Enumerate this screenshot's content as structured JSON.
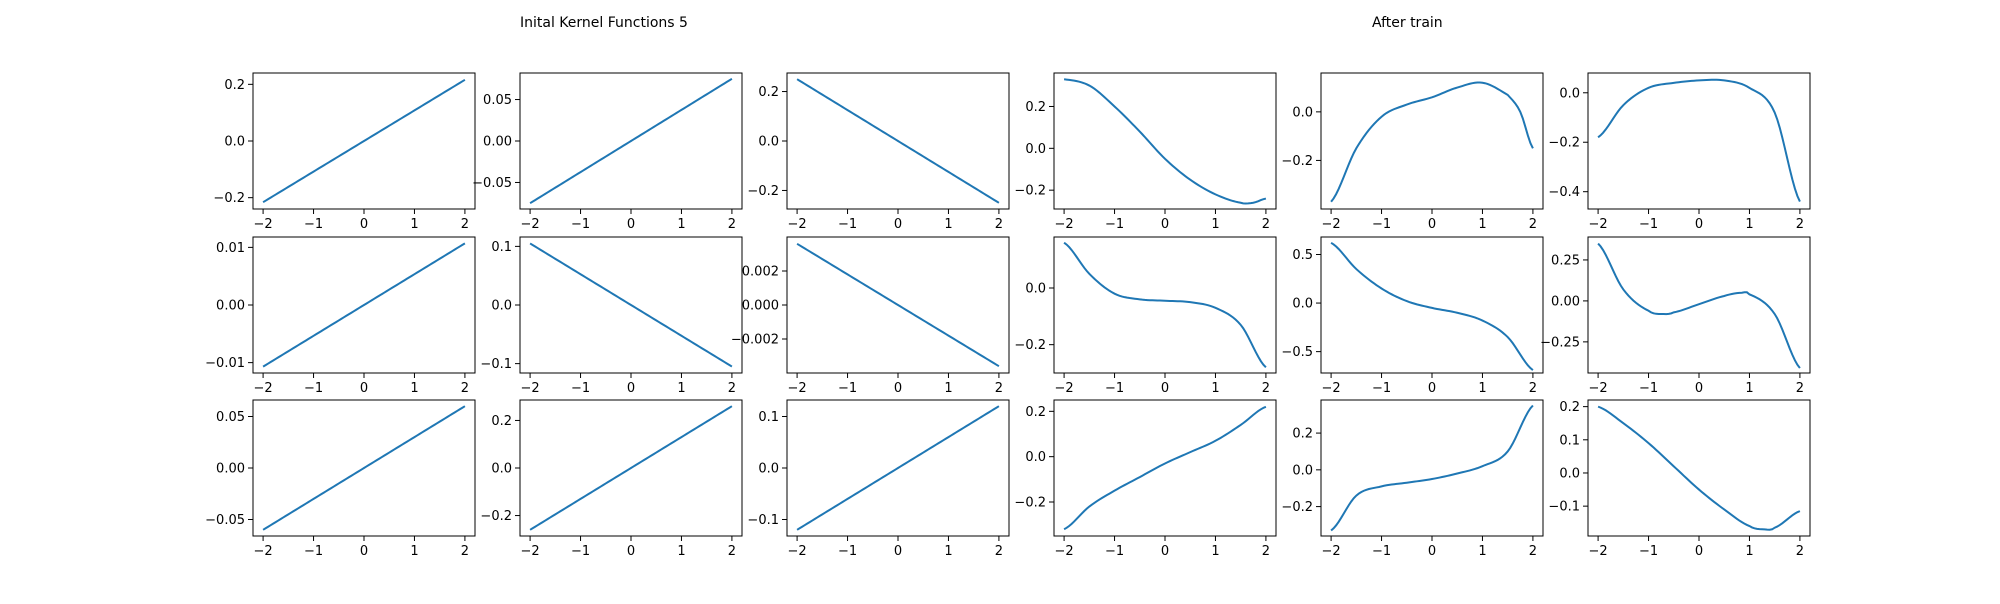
{
  "figure": {
    "left_title": "Inital Kernel Functions 5",
    "right_title": "After train"
  },
  "colors": {
    "line": "#1f77b4",
    "axes": "#000000"
  },
  "chart_data": [
    {
      "type": "line",
      "panel": "r1c1",
      "func": "linear",
      "params": [
        0.0,
        0.108
      ],
      "xlim": [
        -2,
        2
      ],
      "ylim": [
        -0.24,
        0.24
      ],
      "yticks": [
        -0.2,
        0.0,
        0.2
      ],
      "ytick_labels": [
        "−0.2",
        "0.0",
        "0.2"
      ]
    },
    {
      "type": "line",
      "panel": "r1c2",
      "func": "linear",
      "params": [
        0.0,
        0.0375
      ],
      "xlim": [
        -2,
        2
      ],
      "ylim": [
        -0.082,
        0.082
      ],
      "yticks": [
        -0.05,
        0.0,
        0.05
      ],
      "ytick_labels": [
        "−0.05",
        "0.00",
        "0.05"
      ]
    },
    {
      "type": "line",
      "panel": "r1c3",
      "func": "linear",
      "params": [
        0.0,
        -0.125
      ],
      "xlim": [
        -2,
        2
      ],
      "ylim": [
        -0.275,
        0.275
      ],
      "yticks": [
        -0.2,
        0.0,
        0.2
      ],
      "ytick_labels": [
        "−0.2",
        "0.0",
        "0.2"
      ]
    },
    {
      "type": "line",
      "panel": "r1c4",
      "func": "points",
      "x": [
        -2,
        -1.5,
        -1,
        -0.5,
        0,
        0.5,
        1,
        1.5,
        1.75,
        2
      ],
      "y": [
        0.33,
        0.3,
        0.2,
        0.08,
        -0.05,
        -0.15,
        -0.22,
        -0.26,
        -0.26,
        -0.24
      ],
      "xlim": [
        -2,
        2
      ],
      "ylim": [
        -0.29,
        0.36
      ],
      "yticks": [
        -0.2,
        0.0,
        0.2
      ],
      "ytick_labels": [
        "−0.2",
        "0.0",
        "0.2"
      ]
    },
    {
      "type": "line",
      "panel": "r1c5",
      "func": "points",
      "x": [
        -2,
        -1.5,
        -1,
        -0.5,
        0,
        0.5,
        1,
        1.5,
        1.75,
        2
      ],
      "y": [
        -0.37,
        -0.15,
        -0.02,
        0.03,
        0.06,
        0.1,
        0.12,
        0.07,
        0.0,
        -0.15
      ],
      "xlim": [
        -2,
        2
      ],
      "ylim": [
        -0.4,
        0.16
      ],
      "yticks": [
        -0.2,
        0.0
      ],
      "ytick_labels": [
        "−0.2",
        "0.0"
      ]
    },
    {
      "type": "line",
      "panel": "r1c6",
      "func": "points",
      "x": [
        -2,
        -1.5,
        -1,
        -0.5,
        0,
        0.5,
        1,
        1.5,
        2
      ],
      "y": [
        -0.18,
        -0.05,
        0.02,
        0.04,
        0.05,
        0.05,
        0.02,
        -0.08,
        -0.44
      ],
      "xlim": [
        -2,
        2
      ],
      "ylim": [
        -0.47,
        0.08
      ],
      "yticks": [
        -0.4,
        -0.2,
        0.0
      ],
      "ytick_labels": [
        "−0.4",
        "−0.2",
        "0.0"
      ]
    },
    {
      "type": "line",
      "panel": "r2c1",
      "func": "linear",
      "params": [
        0.0,
        0.00535
      ],
      "xlim": [
        -2,
        2
      ],
      "ylim": [
        -0.0118,
        0.0118
      ],
      "yticks": [
        -0.01,
        0.0,
        0.01
      ],
      "ytick_labels": [
        "−0.01",
        "0.00",
        "0.01"
      ]
    },
    {
      "type": "line",
      "panel": "r2c2",
      "func": "linear",
      "params": [
        0.0,
        -0.0525
      ],
      "xlim": [
        -2,
        2
      ],
      "ylim": [
        -0.116,
        0.116
      ],
      "yticks": [
        -0.1,
        0.0,
        0.1
      ],
      "ytick_labels": [
        "−0.1",
        "0.0",
        "0.1"
      ]
    },
    {
      "type": "line",
      "panel": "r2c3",
      "func": "linear",
      "params": [
        0.0,
        -0.0018
      ],
      "xlim": [
        -2,
        2
      ],
      "ylim": [
        -0.004,
        0.004
      ],
      "yticks": [
        -0.002,
        0.0,
        0.002
      ],
      "ytick_labels": [
        "−0.002",
        "0.000",
        "0.002"
      ]
    },
    {
      "type": "line",
      "panel": "r2c4",
      "func": "points",
      "x": [
        -2,
        -1.5,
        -1,
        -0.5,
        0,
        0.5,
        1,
        1.5,
        2
      ],
      "y": [
        0.16,
        0.05,
        -0.02,
        -0.04,
        -0.045,
        -0.05,
        -0.07,
        -0.13,
        -0.28
      ],
      "xlim": [
        -2,
        2
      ],
      "ylim": [
        -0.3,
        0.18
      ],
      "yticks": [
        -0.2,
        0.0
      ],
      "ytick_labels": [
        "−0.2",
        "0.0"
      ]
    },
    {
      "type": "line",
      "panel": "r2c5",
      "func": "points",
      "x": [
        -2,
        -1.5,
        -1,
        -0.5,
        0,
        0.5,
        1,
        1.5,
        2
      ],
      "y": [
        0.62,
        0.35,
        0.15,
        0.02,
        -0.05,
        -0.1,
        -0.18,
        -0.35,
        -0.69
      ],
      "xlim": [
        -2,
        2
      ],
      "ylim": [
        -0.72,
        0.68
      ],
      "yticks": [
        -0.5,
        0.0,
        0.5
      ],
      "ytick_labels": [
        "−0.5",
        "0.0",
        "0.5"
      ]
    },
    {
      "type": "line",
      "panel": "r2c6",
      "func": "points",
      "x": [
        -2,
        -1.5,
        -1,
        -0.7,
        -0.5,
        0,
        0.5,
        0.85,
        1,
        1.5,
        2
      ],
      "y": [
        0.35,
        0.07,
        -0.06,
        -0.08,
        -0.07,
        -0.02,
        0.03,
        0.05,
        0.04,
        -0.08,
        -0.41
      ],
      "xlim": [
        -2,
        2
      ],
      "ylim": [
        -0.44,
        0.39
      ],
      "yticks": [
        -0.25,
        0.0,
        0.25
      ],
      "ytick_labels": [
        "−0.25",
        "0.00",
        "0.25"
      ]
    },
    {
      "type": "line",
      "panel": "r3c1",
      "func": "linear",
      "params": [
        0.0,
        0.03
      ],
      "xlim": [
        -2,
        2
      ],
      "ylim": [
        -0.066,
        0.066
      ],
      "yticks": [
        -0.05,
        0.0,
        0.05
      ],
      "ytick_labels": [
        "−0.05",
        "0.00",
        "0.05"
      ]
    },
    {
      "type": "line",
      "panel": "r3c2",
      "func": "linear",
      "params": [
        0.0,
        0.13
      ],
      "xlim": [
        -2,
        2
      ],
      "ylim": [
        -0.286,
        0.286
      ],
      "yticks": [
        -0.2,
        0.0,
        0.2
      ],
      "ytick_labels": [
        "−0.2",
        "0.0",
        "0.2"
      ]
    },
    {
      "type": "line",
      "panel": "r3c3",
      "func": "linear",
      "params": [
        0.0,
        0.06
      ],
      "xlim": [
        -2,
        2
      ],
      "ylim": [
        -0.132,
        0.132
      ],
      "yticks": [
        -0.1,
        0.0,
        0.1
      ],
      "ytick_labels": [
        "−0.1",
        "0.0",
        "0.1"
      ]
    },
    {
      "type": "line",
      "panel": "r3c4",
      "func": "points",
      "x": [
        -2,
        -1.5,
        -1,
        -0.5,
        0,
        0.5,
        1,
        1.5,
        2
      ],
      "y": [
        -0.32,
        -0.22,
        -0.15,
        -0.09,
        -0.03,
        0.02,
        0.07,
        0.14,
        0.22
      ],
      "xlim": [
        -2,
        2
      ],
      "ylim": [
        -0.35,
        0.25
      ],
      "yticks": [
        -0.2,
        0.0,
        0.2
      ],
      "ytick_labels": [
        "−0.2",
        "0.0",
        "0.2"
      ]
    },
    {
      "type": "line",
      "panel": "r3c5",
      "func": "points",
      "x": [
        -2,
        -1.5,
        -1,
        -0.5,
        0,
        0.5,
        1,
        1.5,
        2
      ],
      "y": [
        -0.33,
        -0.14,
        -0.09,
        -0.07,
        -0.05,
        -0.02,
        0.02,
        0.1,
        0.35
      ],
      "xlim": [
        -2,
        2
      ],
      "ylim": [
        -0.36,
        0.38
      ],
      "yticks": [
        -0.2,
        0.0,
        0.2
      ],
      "ytick_labels": [
        "−0.2",
        "0.0",
        "0.2"
      ]
    },
    {
      "type": "line",
      "panel": "r3c6",
      "func": "points",
      "x": [
        -2,
        -1.5,
        -1,
        -0.5,
        0,
        0.5,
        1,
        1.3,
        1.5,
        2
      ],
      "y": [
        0.2,
        0.15,
        0.09,
        0.02,
        -0.05,
        -0.11,
        -0.16,
        -0.17,
        -0.165,
        -0.115
      ],
      "xlim": [
        -2,
        2
      ],
      "ylim": [
        -0.19,
        0.22
      ],
      "yticks": [
        -0.1,
        0.0,
        0.1,
        0.2
      ],
      "ytick_labels": [
        "−0.1",
        "0.0",
        "0.1",
        "0.2"
      ]
    }
  ],
  "xticks": [
    -2,
    -1,
    0,
    1,
    2
  ],
  "xtick_labels": [
    "−2",
    "−1",
    "0",
    "1",
    "2"
  ]
}
